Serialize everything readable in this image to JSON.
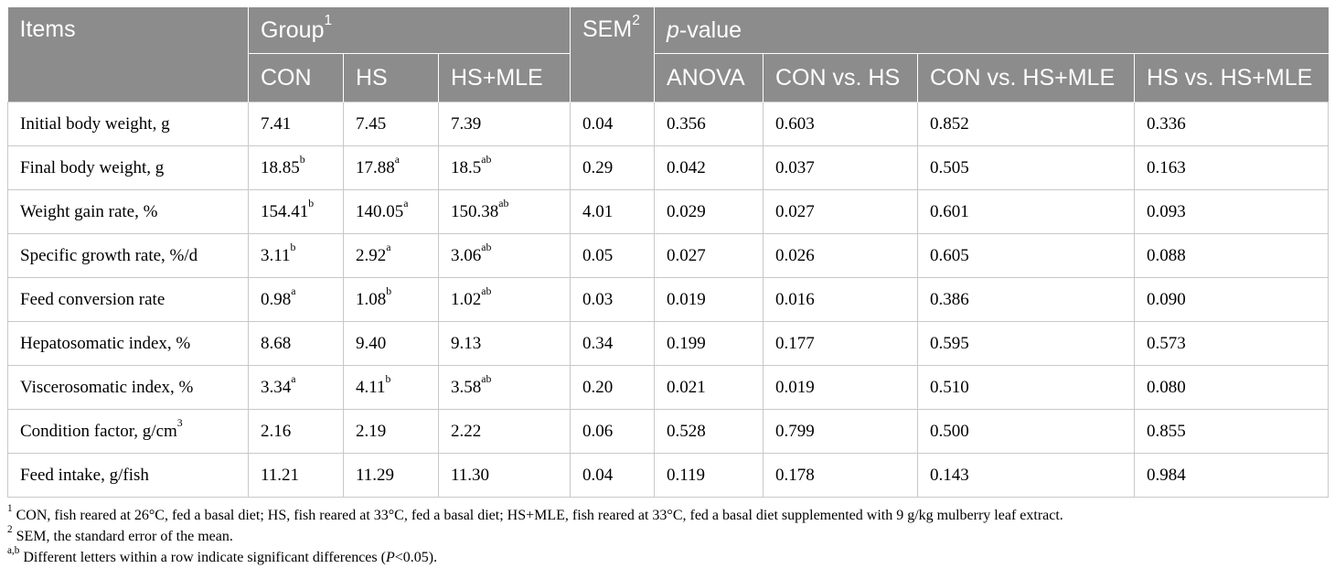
{
  "header": {
    "items": "Items",
    "group": "Group",
    "group_sup": "1",
    "sem": "SEM",
    "sem_sup": "2",
    "p_italic": "p",
    "p_rest": "-value",
    "sub": [
      "CON",
      "HS",
      "HS+MLE",
      "ANOVA",
      "CON vs. HS",
      "CON vs. HS+MLE",
      "HS vs. HS+MLE"
    ]
  },
  "rows": [
    {
      "label": "Initial body weight, g",
      "label_sup": "",
      "con": "7.41",
      "con_sup": "",
      "hs": "7.45",
      "hs_sup": "",
      "mle": "7.39",
      "mle_sup": "",
      "sem": "0.04",
      "anova": "0.356",
      "con_hs": "0.603",
      "con_mle": "0.852",
      "hs_mle": "0.336"
    },
    {
      "label": "Final body weight, g",
      "label_sup": "",
      "con": "18.85",
      "con_sup": "b",
      "hs": "17.88",
      "hs_sup": "a",
      "mle": "18.5",
      "mle_sup": "ab",
      "sem": "0.29",
      "anova": "0.042",
      "con_hs": "0.037",
      "con_mle": "0.505",
      "hs_mle": "0.163"
    },
    {
      "label": "Weight gain rate, %",
      "label_sup": "",
      "con": "154.41",
      "con_sup": "b",
      "hs": "140.05",
      "hs_sup": "a",
      "mle": "150.38",
      "mle_sup": "ab",
      "sem": "4.01",
      "anova": "0.029",
      "con_hs": "0.027",
      "con_mle": "0.601",
      "hs_mle": "0.093"
    },
    {
      "label": "Specific growth rate, %/d",
      "label_sup": "",
      "con": "3.11",
      "con_sup": "b",
      "hs": "2.92",
      "hs_sup": "a",
      "mle": "3.06",
      "mle_sup": "ab",
      "sem": "0.05",
      "anova": "0.027",
      "con_hs": "0.026",
      "con_mle": "0.605",
      "hs_mle": "0.088"
    },
    {
      "label": "Feed conversion rate",
      "label_sup": "",
      "con": "0.98",
      "con_sup": "a",
      "hs": "1.08",
      "hs_sup": "b",
      "mle": "1.02",
      "mle_sup": "ab",
      "sem": "0.03",
      "anova": "0.019",
      "con_hs": "0.016",
      "con_mle": "0.386",
      "hs_mle": "0.090"
    },
    {
      "label": "Hepatosomatic index, %",
      "label_sup": "",
      "con": "8.68",
      "con_sup": "",
      "hs": "9.40",
      "hs_sup": "",
      "mle": "9.13",
      "mle_sup": "",
      "sem": "0.34",
      "anova": "0.199",
      "con_hs": "0.177",
      "con_mle": "0.595",
      "hs_mle": "0.573"
    },
    {
      "label": "Viscerosomatic index, %",
      "label_sup": "",
      "con": "3.34",
      "con_sup": "a",
      "hs": "4.11",
      "hs_sup": "b",
      "mle": "3.58",
      "mle_sup": "ab",
      "sem": "0.20",
      "anova": "0.021",
      "con_hs": "0.019",
      "con_mle": "0.510",
      "hs_mle": "0.080"
    },
    {
      "label": "Condition factor, g/cm",
      "label_sup": "3",
      "con": "2.16",
      "con_sup": "",
      "hs": "2.19",
      "hs_sup": "",
      "mle": "2.22",
      "mle_sup": "",
      "sem": "0.06",
      "anova": "0.528",
      "con_hs": "0.799",
      "con_mle": "0.500",
      "hs_mle": "0.855"
    },
    {
      "label": "Feed intake, g/fish",
      "label_sup": "",
      "con": "11.21",
      "con_sup": "",
      "hs": "11.29",
      "hs_sup": "",
      "mle": "11.30",
      "mle_sup": "",
      "sem": "0.04",
      "anova": "0.119",
      "con_hs": "0.178",
      "con_mle": "0.143",
      "hs_mle": "0.984"
    }
  ],
  "footnotes": {
    "n1_mark": "1",
    "n1_text": " CON, fish reared at 26°C, fed a basal diet; HS, fish reared at 33°C, fed a basal diet; HS+MLE, fish reared at 33°C, fed a basal diet supplemented with 9 g/kg mulberry leaf extract.",
    "n2_mark": "2",
    "n2_text": " SEM, the standard error of the mean.",
    "n3_mark": "a,b",
    "n3_text_before": " Different letters within a row indicate significant differences (",
    "n3_italic": "P",
    "n3_text_after": "<0.05)."
  }
}
